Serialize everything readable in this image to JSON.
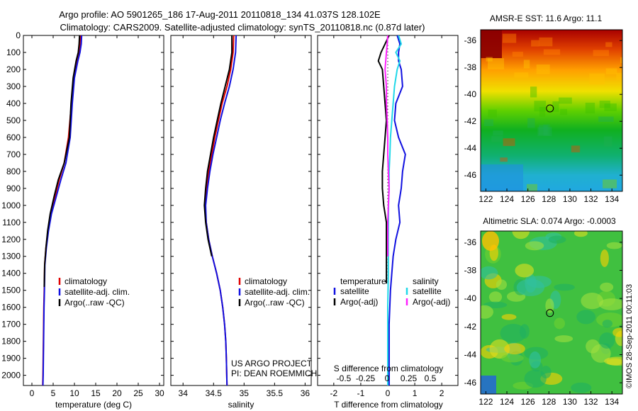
{
  "header": {
    "line1": "Argo profile: AO 5901265_186 17-Aug-2011 20110818_134 41.037S 128.102E",
    "line2": "Climatology: CARS2009. Satellite-adjusted climatology: synTS_20110818.nc (0.87d later)"
  },
  "footer": {
    "project": "US ARGO PROJECT",
    "pi": "PI: DEAN ROEMMICH",
    "imos": "©IMOS 28-Sep-2011 00:11:03"
  },
  "colors": {
    "climatology": "#e00000",
    "satellite": "#1010e0",
    "argo": "#000000",
    "sal_satellite": "#20d8e8",
    "sal_argo": "#ff20ff"
  },
  "chart_data": [
    {
      "type": "line",
      "name": "temperature-panel",
      "xlabel": "temperature (deg C)",
      "ylabel": "",
      "xlim": [
        -2,
        31
      ],
      "ylim": [
        2060,
        0
      ],
      "xticks": [
        0,
        5,
        10,
        15,
        20,
        25,
        30
      ],
      "yticks": [
        0,
        100,
        200,
        300,
        400,
        500,
        600,
        700,
        800,
        900,
        1000,
        1100,
        1200,
        1300,
        1400,
        1500,
        1600,
        1700,
        1800,
        1900,
        2000
      ],
      "legend": [
        "climatology",
        "satellite-adj. clim.",
        "Argo(..raw -QC)"
      ],
      "legend_position": "lower-center",
      "series": [
        {
          "name": "climatology",
          "color": "#e00000",
          "x": [
            11.4,
            11.3,
            11.0,
            10.5,
            9.8,
            9.3,
            8.6,
            7.6,
            6.4,
            5.4,
            4.4,
            3.8,
            3.3,
            3.0,
            2.9,
            2.8,
            2.75,
            2.7,
            2.65,
            2.6,
            2.55,
            2.55
          ],
          "y": [
            0,
            50,
            100,
            150,
            250,
            400,
            600,
            750,
            850,
            950,
            1050,
            1150,
            1250,
            1350,
            1500,
            1600,
            1700,
            1800,
            1900,
            2000,
            2050,
            2060
          ]
        },
        {
          "name": "satellite-adj. clim.",
          "color": "#1010e0",
          "x": [
            11.7,
            11.6,
            11.3,
            10.8,
            10.0,
            9.5,
            9.0,
            8.0,
            6.8,
            5.7,
            4.6,
            3.9,
            3.4,
            3.05,
            2.95,
            2.85,
            2.8,
            2.75,
            2.7,
            2.65,
            2.6,
            2.6
          ],
          "y": [
            0,
            50,
            100,
            150,
            250,
            400,
            600,
            750,
            850,
            950,
            1050,
            1150,
            1250,
            1350,
            1500,
            1600,
            1700,
            1800,
            1900,
            2000,
            2050,
            2060
          ]
        },
        {
          "name": "Argo(..raw -QC)",
          "color": "#000000",
          "x": [
            11.2,
            11.1,
            10.9,
            10.4,
            9.7,
            9.2,
            8.8,
            7.6,
            6.2,
            5.2,
            4.3,
            3.7,
            3.3,
            3.0,
            2.9
          ],
          "y": [
            0,
            50,
            100,
            150,
            250,
            400,
            600,
            750,
            850,
            950,
            1050,
            1150,
            1250,
            1350,
            1480
          ]
        }
      ]
    },
    {
      "type": "line",
      "name": "salinity-panel",
      "xlabel": "salinity",
      "ylabel": "",
      "xlim": [
        33.8,
        36.1
      ],
      "ylim": [
        2060,
        0
      ],
      "xticks": [
        34,
        34.5,
        35,
        35.5,
        36
      ],
      "xticklabels": [
        "34",
        "34.5",
        "35",
        "35.5",
        "36"
      ],
      "legend": [
        "climatology",
        "satellite-adj. clim.",
        "Argo(..raw -QC)"
      ],
      "legend_position": "lower-center",
      "series": [
        {
          "name": "climatology",
          "color": "#e00000",
          "x": [
            34.83,
            34.82,
            34.78,
            34.72,
            34.64,
            34.58,
            34.52,
            34.47,
            34.42,
            34.38,
            34.36,
            34.38,
            34.42,
            34.48,
            34.55,
            34.61,
            34.65,
            34.68,
            34.7,
            34.71,
            34.72
          ],
          "y": [
            0,
            100,
            200,
            300,
            400,
            500,
            600,
            700,
            800,
            900,
            1000,
            1100,
            1200,
            1300,
            1400,
            1500,
            1600,
            1700,
            1800,
            1900,
            2060
          ]
        },
        {
          "name": "satellite-adj. clim.",
          "color": "#1010e0",
          "x": [
            34.87,
            34.86,
            34.82,
            34.76,
            34.68,
            34.61,
            34.55,
            34.49,
            34.44,
            34.4,
            34.37,
            34.38,
            34.42,
            34.48,
            34.55,
            34.61,
            34.65,
            34.68,
            34.7,
            34.71,
            34.72
          ],
          "y": [
            0,
            100,
            200,
            300,
            400,
            500,
            600,
            700,
            800,
            900,
            1000,
            1100,
            1200,
            1300,
            1400,
            1500,
            1600,
            1700,
            1800,
            1900,
            2060
          ]
        },
        {
          "name": "Argo(..raw -QC)",
          "color": "#000000",
          "x": [
            34.8,
            34.8,
            34.76,
            34.69,
            34.62,
            34.56,
            34.5,
            34.45,
            34.4,
            34.37,
            34.35,
            34.37,
            34.41,
            34.47
          ],
          "y": [
            0,
            100,
            200,
            300,
            400,
            500,
            600,
            700,
            800,
            900,
            1000,
            1100,
            1200,
            1300
          ]
        }
      ]
    },
    {
      "type": "line",
      "name": "difference-panel",
      "xlabel": "T difference from climatology",
      "xlabel_top": "S difference from climatology",
      "xlim": [
        -2.6,
        2.6
      ],
      "ylim": [
        2060,
        0
      ],
      "xticks_bottom": [
        -2,
        -1,
        0,
        1,
        2
      ],
      "xticks_s": [
        -0.5,
        -0.25,
        0,
        0.25,
        0.5
      ],
      "xticks_s_labels": [
        "-0.5",
        "-0.25",
        "0",
        "0.25",
        "0.5"
      ],
      "legend_temperature_title": "temperature",
      "legend_salinity_title": "salinity",
      "legend_labels": [
        "satellite",
        "Argo(-adj)"
      ],
      "legend_position": "lower-center",
      "series": [
        {
          "name": "temperature satellite",
          "color": "#1010e0",
          "x": [
            0.35,
            0.45,
            0.4,
            0.4,
            0.5,
            0.55,
            0.3,
            0.25,
            0.4,
            0.65,
            0.55,
            0.5,
            0.4,
            0.45,
            0.3,
            0.2,
            0.15,
            0.1,
            0.05,
            0.05,
            0.05,
            0.05
          ],
          "y": [
            0,
            50,
            100,
            150,
            200,
            300,
            400,
            500,
            600,
            700,
            800,
            900,
            1000,
            1100,
            1200,
            1300,
            1400,
            1500,
            1700,
            1900,
            2000,
            2060
          ]
        },
        {
          "name": "temperature Argo(-adj)",
          "color": "#000000",
          "x": [
            0.05,
            -0.1,
            -0.25,
            -0.35,
            -0.2,
            -0.15,
            -0.1,
            -0.05,
            -0.1,
            -0.15,
            -0.2,
            -0.2,
            -0.15,
            -0.05,
            -0.05,
            -0.05
          ],
          "y": [
            0,
            50,
            100,
            150,
            200,
            300,
            400,
            500,
            600,
            700,
            800,
            900,
            1000,
            1100,
            1200,
            1460
          ]
        },
        {
          "name": "salinity satellite",
          "color": "#20d8e8",
          "x": [
            0.4,
            0.5,
            0.3,
            0.45,
            0.35,
            0.25,
            0.2,
            0.15,
            0.1,
            0.08,
            0.05,
            0.05,
            0.03,
            0.02,
            0.02,
            0.0,
            0.0,
            0.0
          ],
          "y": [
            0,
            50,
            100,
            150,
            200,
            300,
            400,
            500,
            600,
            700,
            800,
            900,
            1000,
            1200,
            1400,
            1600,
            1800,
            2060
          ]
        },
        {
          "name": "salinity Argo(-adj)",
          "color": "#ff20ff",
          "x": [
            0.0,
            -0.02,
            -0.05,
            -0.1,
            -0.05,
            -0.05,
            -0.02,
            0.0,
            0.0,
            0.02,
            0.05,
            0.02,
            0.0,
            0.0
          ],
          "y": [
            0,
            50,
            100,
            200,
            300,
            400,
            500,
            600,
            700,
            800,
            900,
            1000,
            1100,
            1300
          ]
        }
      ]
    },
    {
      "type": "heatmap",
      "name": "sst-map",
      "title": "AMSR-E SST: 11.6 Argo: 11.1",
      "xlim": [
        121.5,
        135
      ],
      "ylim": [
        -47.2,
        -35.2
      ],
      "xticks": [
        122,
        124,
        126,
        128,
        130,
        132,
        134
      ],
      "yticks": [
        -36,
        -38,
        -40,
        -42,
        -44,
        -46
      ],
      "marker": {
        "lon": 128.1,
        "lat": -41.04
      }
    },
    {
      "type": "heatmap",
      "name": "sla-map",
      "title": "Altimetric SLA: 0.074 Argo: -0.0003",
      "xlim": [
        121.5,
        135
      ],
      "ylim": [
        -46.8,
        -35.2
      ],
      "xticks": [
        122,
        124,
        126,
        128,
        130,
        132,
        134
      ],
      "yticks": [
        -36,
        -38,
        -40,
        -42,
        -44,
        -46
      ],
      "marker": {
        "lon": 128.1,
        "lat": -41.04
      }
    }
  ]
}
